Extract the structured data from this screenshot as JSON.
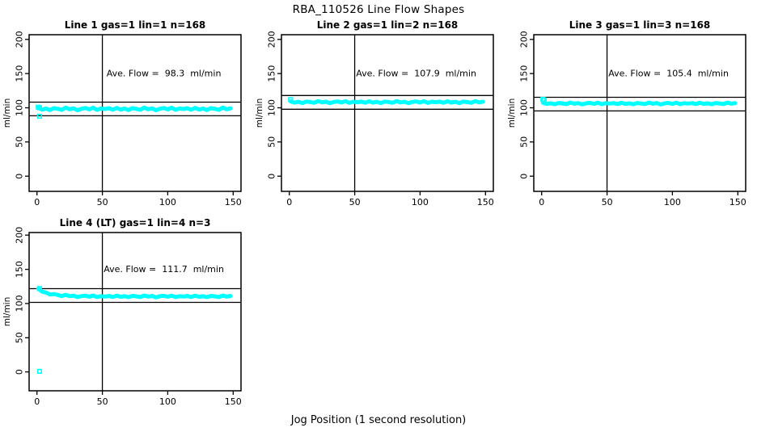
{
  "suptitle": "RBA_110526  Line Flow Shapes",
  "xlabel": "Jog Position (1 second resolution)",
  "point_color": "#00FFFF",
  "axis_color": "#000000",
  "chart_data": [
    {
      "type": "scatter",
      "title": "Line 1 gas=1 lin=1 n=168",
      "line": 1,
      "gas": 1,
      "lin": 1,
      "n": 168,
      "annotation": "Ave. Flow =  98.3  ml/min",
      "ave_flow": 98.3,
      "ylabel": "ml/min",
      "xlim": [
        0,
        150
      ],
      "ylim": [
        0,
        200
      ],
      "xticks": [
        0,
        50,
        100,
        150
      ],
      "yticks": [
        0,
        50,
        100,
        150,
        200
      ],
      "vline_x": 50,
      "hlines": [
        108.3,
        88.3
      ],
      "series": {
        "x_start": 1,
        "x_step": 3,
        "y": [
          99.8,
          97.4,
          98.9,
          96.7,
          99.5,
          98.5,
          97.1,
          100.2,
          97.9,
          99.2,
          96.5,
          98.6,
          99.6,
          97.7,
          100.1,
          97.0,
          99.0,
          98.2,
          99.4,
          97.2,
          99.8,
          97.4,
          98.9,
          96.7,
          99.5,
          98.5,
          97.1,
          100.2,
          97.9,
          99.2,
          96.5,
          98.6,
          99.6,
          97.7,
          100.1,
          97.0,
          99.0,
          98.2,
          99.4,
          97.2,
          99.8,
          97.4,
          98.9,
          96.7,
          99.5,
          98.5,
          97.1,
          100.2,
          97.9,
          99.2
        ]
      },
      "markers": [
        [
          1,
          100.8
        ],
        [
          2,
          100.2
        ],
        [
          2,
          87.6
        ]
      ]
    },
    {
      "type": "scatter",
      "title": "Line 2 gas=1 lin=2 n=168",
      "line": 2,
      "gas": 1,
      "lin": 2,
      "n": 168,
      "annotation": "Ave. Flow =  107.9  ml/min",
      "ave_flow": 107.9,
      "ylabel": "ml/min",
      "xlim": [
        0,
        150
      ],
      "ylim": [
        0,
        200
      ],
      "xticks": [
        0,
        50,
        100,
        150
      ],
      "yticks": [
        0,
        50,
        100,
        150,
        200
      ],
      "vline_x": 50,
      "hlines": [
        117.9,
        97.9
      ],
      "series": {
        "x_start": 1,
        "x_step": 3,
        "y": [
          109.4,
          107.6,
          108.7,
          107.0,
          109.1,
          108.4,
          107.3,
          109.7,
          107.9,
          108.9,
          106.9,
          108.5,
          109.2,
          107.8,
          109.6,
          107.2,
          108.8,
          108.1,
          109.0,
          107.4,
          109.4,
          107.6,
          108.7,
          107.0,
          109.1,
          108.4,
          107.3,
          109.7,
          107.9,
          108.9,
          106.9,
          108.5,
          109.2,
          107.8,
          109.6,
          107.2,
          108.8,
          108.1,
          109.0,
          107.4,
          109.4,
          107.6,
          108.7,
          107.0,
          109.1,
          108.4,
          107.3,
          109.7,
          107.9,
          108.9
        ]
      },
      "markers": [
        [
          1,
          111.9
        ]
      ]
    },
    {
      "type": "scatter",
      "title": "Line 3 gas=1 lin=3 n=168",
      "line": 3,
      "gas": 1,
      "lin": 3,
      "n": 168,
      "annotation": "Ave. Flow =  105.4  ml/min",
      "ave_flow": 105.4,
      "ylabel": "ml/min",
      "xlim": [
        0,
        150
      ],
      "ylim": [
        0,
        200
      ],
      "xticks": [
        0,
        50,
        100,
        150
      ],
      "yticks": [
        0,
        50,
        100,
        150,
        200
      ],
      "vline_x": 50,
      "hlines": [
        115.4,
        95.4
      ],
      "series": {
        "x_start": 1,
        "x_step": 3,
        "y": [
          107.3,
          105.7,
          106.6,
          105.2,
          107.0,
          106.4,
          105.4,
          107.5,
          106.0,
          106.9,
          105.0,
          106.5,
          107.1,
          105.8,
          107.4,
          105.3,
          106.7,
          106.1,
          106.9,
          105.5,
          107.3,
          105.7,
          106.6,
          105.2,
          107.0,
          106.4,
          105.4,
          107.5,
          106.0,
          106.9,
          105.0,
          106.5,
          107.1,
          105.8,
          107.4,
          105.3,
          106.7,
          106.1,
          106.9,
          105.5,
          107.3,
          105.7,
          106.6,
          105.2,
          107.0,
          106.4,
          105.4,
          107.5,
          106.0,
          106.9
        ]
      },
      "markers": [
        [
          1,
          112.3
        ],
        [
          2,
          111.5
        ]
      ]
    },
    {
      "type": "scatter",
      "title": "Line 4 (LT) gas=1 lin=4 n=3",
      "line": 4,
      "gas": 1,
      "lin": 4,
      "n": 3,
      "annotation": "Ave. Flow =  111.7  ml/min",
      "ave_flow": 111.7,
      "ylabel": "ml/min",
      "xlim": [
        0,
        150
      ],
      "ylim": [
        0,
        200
      ],
      "xticks": [
        0,
        50,
        100,
        150
      ],
      "yticks": [
        0,
        50,
        100,
        150,
        200
      ],
      "vline_x": 50,
      "hlines": [
        121.7,
        101.7
      ],
      "series": {
        "x_start": 1,
        "x_step": 3,
        "y": [
          121.7,
          117.2,
          116.0,
          113.1,
          113.8,
          112.5,
          110.9,
          112.6,
          110.8,
          111.5,
          109.5,
          110.9,
          111.4,
          110.0,
          111.6,
          109.5,
          110.8,
          110.2,
          111.0,
          109.6,
          111.4,
          109.8,
          110.7,
          109.3,
          111.1,
          110.5,
          109.5,
          111.6,
          110.1,
          111.0,
          109.1,
          110.6,
          111.2,
          109.9,
          111.5,
          109.4,
          110.8,
          110.2,
          111.0,
          109.6,
          111.4,
          109.8,
          110.7,
          109.3,
          111.1,
          110.5,
          109.5,
          111.6,
          110.1,
          111.0
        ]
      },
      "markers": [
        [
          2,
          121.9
        ],
        [
          2,
          0.8
        ]
      ]
    }
  ]
}
